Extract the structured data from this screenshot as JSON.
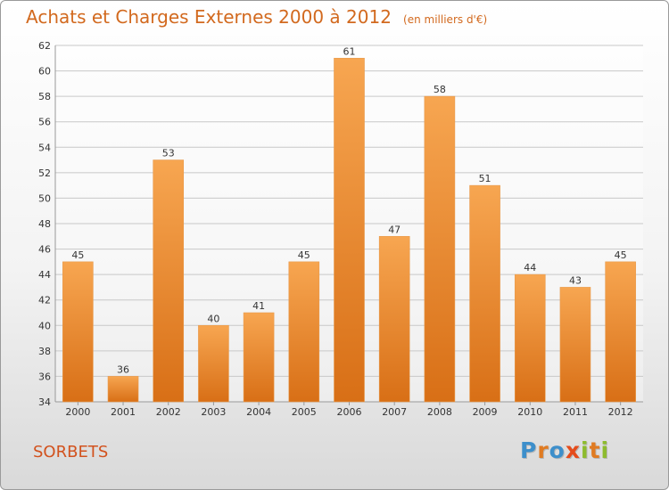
{
  "title": "Achats et Charges Externes 2000 à 2012",
  "unit": "(en milliers d'€)",
  "town": "SORBETS",
  "logo": {
    "text": "Proxiti",
    "colors": [
      "#3d8fcb",
      "#e07b22",
      "#3d8fcb",
      "#e54c1c",
      "#8dbb2e",
      "#e07b22",
      "#8dbb2e"
    ]
  },
  "colors": {
    "bar_top": "#f7a651",
    "bar_bottom": "#d86f16",
    "accent": "#d2691e"
  },
  "chart_data": {
    "type": "bar",
    "categories": [
      "2000",
      "2001",
      "2002",
      "2003",
      "2004",
      "2005",
      "2006",
      "2007",
      "2008",
      "2009",
      "2010",
      "2011",
      "2012"
    ],
    "values": [
      45,
      36,
      53,
      40,
      41,
      45,
      61,
      47,
      58,
      51,
      44,
      43,
      45
    ],
    "title": "Achats et Charges Externes 2000 à 2012",
    "ylim": [
      34,
      62
    ],
    "yticks": [
      34,
      36,
      38,
      40,
      42,
      44,
      46,
      48,
      50,
      52,
      54,
      56,
      58,
      60,
      62
    ],
    "grid": true
  }
}
